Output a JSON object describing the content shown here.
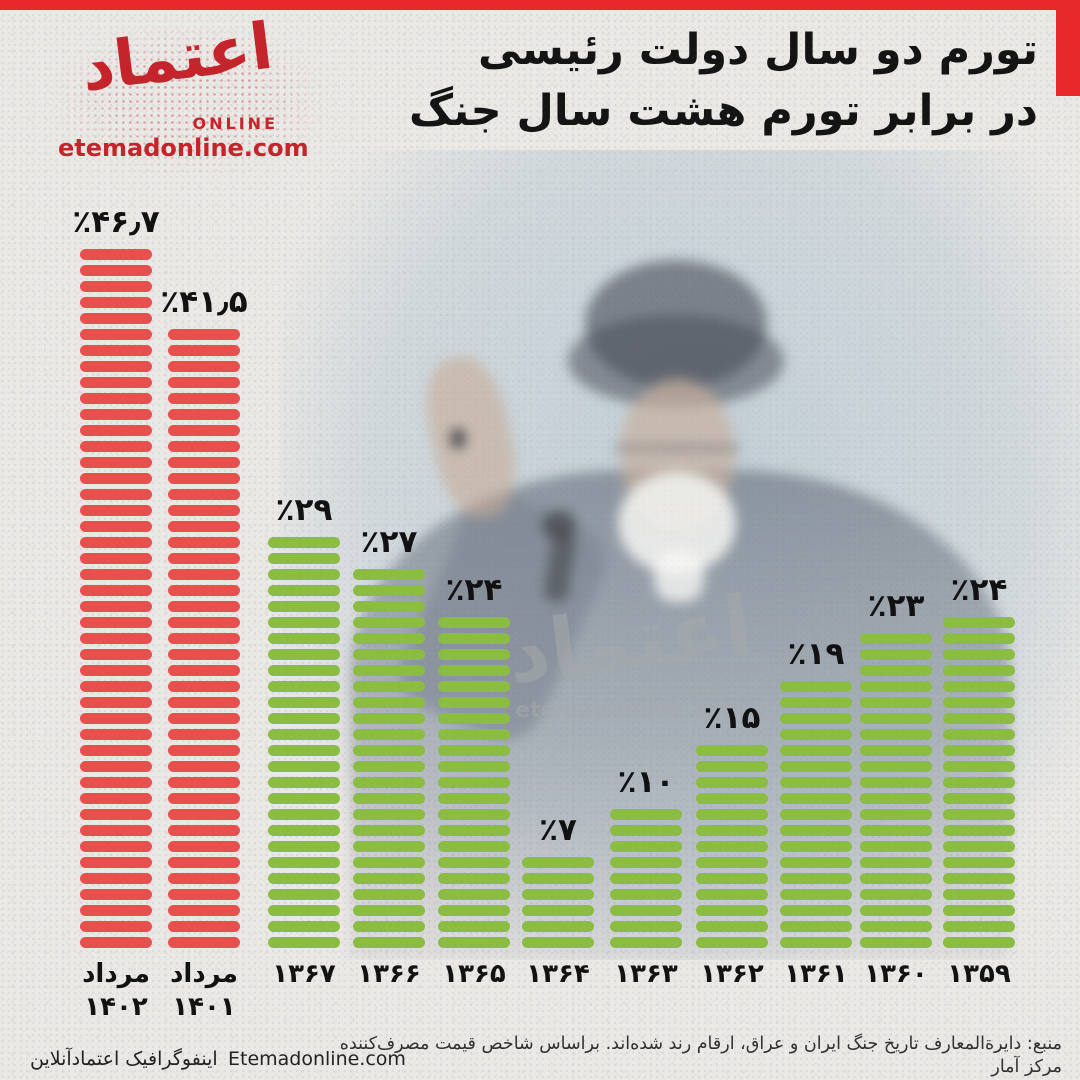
{
  "colors": {
    "accent_red": "#e8282a",
    "bar_red": "#e6514e",
    "bar_green": "#8bbc43",
    "logo_red": "#c5242b",
    "ink": "#141414",
    "paper": "#ebe9e6",
    "watermark_gray": "#a6aaac"
  },
  "logo": {
    "brand_fa": "اعتماد",
    "online": "ONLINE",
    "url": "etemadonline.com"
  },
  "header": {
    "title_line1": "تورم دو سال دولت رئیسی",
    "title_line2": "در برابر تورم هشت سال جنگ"
  },
  "watermark": {
    "brand_fa": "اعتماد",
    "online": "ONLINE",
    "url": "etemadonline.com"
  },
  "chart_data": {
    "type": "bar",
    "orientation": "vertical",
    "bar_style": "stacked horizontal dash segments",
    "title": "تورم دو سال دولت رئیسی در برابر تورم هشت سال جنگ",
    "unit": "%",
    "rtl": true,
    "legend": "none",
    "axes": "none (direct value labels above each bar)",
    "categories": [
      "مرداد\n۱۴۰۲",
      "مرداد\n۱۴۰۱",
      "۱۳۶۷",
      "۱۳۶۶",
      "۱۳۶۵",
      "۱۳۶۴",
      "۱۳۶۳",
      "۱۳۶۲",
      "۱۳۶۱",
      "۱۳۶۰",
      "۱۳۵۹"
    ],
    "values": [
      46.7,
      41.5,
      29,
      27,
      24,
      7,
      10,
      15,
      19,
      23,
      24
    ],
    "value_labels": [
      "٪۴۶٫۷",
      "٪۴۱٫۵",
      "٪۲۹",
      "٪۲۷",
      "٪۲۴",
      "٪۷",
      "٪۱۰",
      "٪۱۵",
      "٪۱۹",
      "٪۲۳",
      "٪۲۴"
    ],
    "groups": [
      "raisi",
      "raisi",
      "war",
      "war",
      "war",
      "war",
      "war",
      "war",
      "war",
      "war",
      "war"
    ],
    "group_colors": {
      "raisi": "#e6514e",
      "war": "#8bbc43"
    }
  },
  "footer": {
    "source_line1": "منبع: دایرةالمعارف تاریخ جنگ ایران و عراق، ارقام رند شده‌اند. براساس شاخص قیمت مصرف‌کننده",
    "source_line2": "مرکز آمار",
    "credit_fa": "اینفوگرافیک اعتمادآنلاین",
    "credit_en": "Etemadonline.com"
  }
}
